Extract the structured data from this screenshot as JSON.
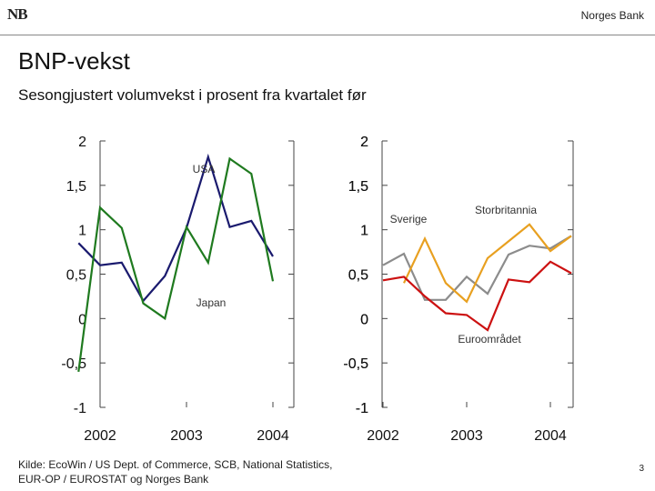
{
  "header": {
    "logo_text": "NB",
    "bank_name": "Norges Bank"
  },
  "slide": {
    "title": "BNP-vekst",
    "subtitle": "Sesongjustert volumvekst i prosent fra kvartalet før",
    "source": "Kilde: EcoWin / US Dept. of Commerce, SCB, National Statistics, EUR-OP / EUROSTAT og Norges Bank",
    "page_number": "3"
  },
  "colors": {
    "usa": "#1a1a6e",
    "japan": "#1f7a1f",
    "sverige": "#8c8c8c",
    "storbritannia": "#e8a020",
    "euroomradet": "#cc1111"
  },
  "chart_data": [
    {
      "type": "line",
      "title": "",
      "ylim": [
        -1,
        2
      ],
      "yticks": [
        "2",
        "1,5",
        "1",
        "0,5",
        "0",
        "-0,5",
        "-1"
      ],
      "xticks": [
        "2002",
        "2003",
        "2004"
      ],
      "x": [
        2001.75,
        2002.0,
        2002.25,
        2002.5,
        2002.75,
        2003.0,
        2003.25,
        2003.5,
        2003.75,
        2004.0,
        2004.25
      ],
      "series": [
        {
          "name": "USA",
          "color_key": "usa",
          "values": [
            0.85,
            0.6,
            0.63,
            0.2,
            0.48,
            1.02,
            1.82,
            1.03,
            1.1,
            0.7,
            null
          ]
        },
        {
          "name": "Japan",
          "color_key": "japan",
          "values": [
            -0.6,
            1.25,
            1.02,
            0.17,
            0.0,
            1.03,
            0.63,
            1.8,
            1.63,
            0.42,
            null
          ]
        }
      ]
    },
    {
      "type": "line",
      "title": "",
      "ylim": [
        -1,
        2
      ],
      "yticks": [
        "2",
        "1,5",
        "1",
        "0,5",
        "0",
        "-0,5",
        "-1"
      ],
      "xticks": [
        "2002",
        "2003",
        "2004"
      ],
      "x": [
        2002.0,
        2002.25,
        2002.5,
        2002.75,
        2003.0,
        2003.25,
        2003.5,
        2003.75,
        2004.0,
        2004.25
      ],
      "series": [
        {
          "name": "Sverige",
          "color_key": "sverige",
          "values": [
            0.6,
            0.73,
            0.21,
            0.21,
            0.47,
            0.28,
            0.72,
            0.82,
            0.79,
            0.93
          ]
        },
        {
          "name": "Storbritannia",
          "color_key": "storbritannia",
          "values": [
            null,
            0.4,
            0.9,
            0.4,
            0.19,
            0.68,
            0.87,
            1.06,
            0.76,
            0.93
          ]
        },
        {
          "name": "Euroområdet",
          "color_key": "euroomradet",
          "values": [
            0.43,
            0.47,
            0.25,
            0.06,
            0.04,
            -0.13,
            0.44,
            0.41,
            0.64,
            0.51
          ]
        }
      ]
    }
  ]
}
